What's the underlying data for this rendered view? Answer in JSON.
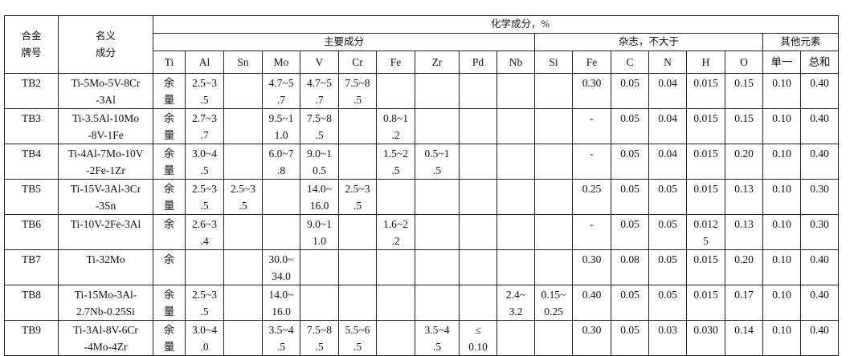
{
  "header": {
    "grade": "合金\n牌号",
    "nominal": "名义\n成分",
    "chem": "化学成分，%",
    "main_group": "主要成分",
    "impurity_group": "杂志，不大于",
    "other_group": "其他元素",
    "columns": [
      "Ti",
      "Al",
      "Sn",
      "Mo",
      "V",
      "Cr",
      "Fe",
      "Zr",
      "Pd",
      "Nb",
      "Si",
      "Fe",
      "C",
      "N",
      "H",
      "O",
      "单一",
      "总和"
    ]
  },
  "rows": [
    {
      "grade": "TB2",
      "nominal": "Ti-5Mo-5V-8Cr\n-3Al",
      "cells": [
        "余\n量",
        "2.5~3\n.5",
        "",
        "4.7~5\n.7",
        "4.7~5\n.7",
        "7.5~8\n.5",
        "",
        "",
        "",
        "",
        "",
        "0.30",
        "0.05",
        "0.04",
        "0.015",
        "0.15",
        "0.10",
        "0.40"
      ]
    },
    {
      "grade": "TB3",
      "nominal": "Ti-3.5Al-10Mo\n-8V-1Fe",
      "cells": [
        "余\n量",
        "2.7~3\n.7",
        "",
        "9.5~1\n1.0",
        "7.5~8\n.5",
        "",
        "0.8~1\n.2",
        "",
        "",
        "",
        "",
        "-",
        "0.05",
        "0.04",
        "0.015",
        "0.15",
        "0.10",
        "0.40"
      ]
    },
    {
      "grade": "TB4",
      "nominal": "Ti-4Al-7Mo-10V\n-2Fe-1Zr",
      "cells": [
        "余\n量",
        "3.0~4\n.5",
        "",
        "6.0~7\n.8",
        "9.0~1\n0.5",
        "",
        "1.5~2\n.5",
        "0.5~1\n.5",
        "",
        "",
        "",
        "-",
        "0.05",
        "0.04",
        "0.015",
        "0.20",
        "0.10",
        "0.40"
      ]
    },
    {
      "grade": "TB5",
      "nominal": "Ti-15V-3Al-3Cr\n-3Sn",
      "cells": [
        "余\n量",
        "2.5~3\n.5",
        "2.5~3\n.5",
        "",
        "14.0~\n16.0",
        "2.5~3\n.5",
        "",
        "",
        "",
        "",
        "",
        "0.25",
        "0.05",
        "0.05",
        "0.015",
        "0.13",
        "0.10",
        "0.30"
      ]
    },
    {
      "grade": "TB6",
      "nominal": "Ti-10V-2Fe-3Al",
      "cells": [
        "余",
        "2.6~3\n.4",
        "",
        "",
        "9.0~1\n1.0",
        "",
        "1.6~2\n.2",
        "",
        "",
        "",
        "",
        "-",
        "0.05",
        "0.05",
        "0.012\n5",
        "0.13",
        "0.10",
        "0.30"
      ]
    },
    {
      "grade": "TB7",
      "nominal": "Ti-32Mo",
      "cells": [
        "余",
        "",
        "",
        "30.0~\n34.0",
        "",
        "",
        "",
        "",
        "",
        "",
        "",
        "0.30",
        "0.08",
        "0.05",
        "0.015",
        "0.20",
        "0.10",
        "0.40"
      ]
    },
    {
      "grade": "TB8",
      "nominal": "Ti-15Mo-3Al-\n2.7Nb-0.25Si",
      "cells": [
        "余\n量",
        "2.5~3\n.5",
        "",
        "14.0~\n16.0",
        "",
        "",
        "",
        "",
        "",
        "2.4~\n3.2",
        "0.15~\n0.25",
        "0.40",
        "0.05",
        "0.05",
        "0.015",
        "0.17",
        "0.10",
        "0.40"
      ]
    },
    {
      "grade": "TB9",
      "nominal": "Ti-3Al-8V-6Cr\n-4Mo-4Zr",
      "cells": [
        "余\n量",
        "3.0~4\n.0",
        "",
        "3.5~4\n.5",
        "7.5~8\n.5",
        "5.5~6\n.5",
        "",
        "3.5~4\n.5",
        "≤\n0.10",
        "",
        "",
        "0.30",
        "0.05",
        "0.03",
        "0.030",
        "0.14",
        "0.10",
        "0.40"
      ]
    }
  ]
}
